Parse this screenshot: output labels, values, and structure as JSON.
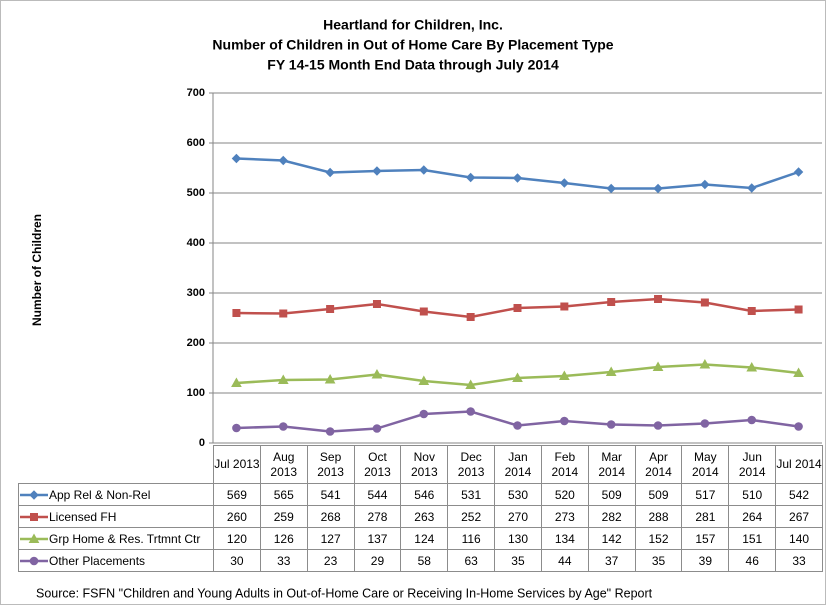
{
  "chart_data": {
    "type": "line",
    "title": [
      "Heartland for Children, Inc.",
      "Number of Children in Out of Home Care By Placement Type",
      "FY 14-15 Month End Data through July 2014"
    ],
    "y_label": "Number of Children",
    "categories": [
      "Jul 2013",
      "Aug 2013",
      "Sep 2013",
      "Oct 2013",
      "Nov 2013",
      "Dec 2013",
      "Jan 2014",
      "Feb 2014",
      "Mar 2014",
      "Apr 2014",
      "May 2014",
      "Jun 2014",
      "Jul 2014"
    ],
    "series": [
      {
        "name": "App Rel & Non-Rel",
        "color": "#4f81bd",
        "marker": "diamond",
        "values": [
          569,
          565,
          541,
          544,
          546,
          531,
          530,
          520,
          509,
          509,
          517,
          510,
          542
        ]
      },
      {
        "name": "Licensed FH",
        "color": "#c0504d",
        "marker": "square",
        "values": [
          260,
          259,
          268,
          278,
          263,
          252,
          270,
          273,
          282,
          288,
          281,
          264,
          267
        ]
      },
      {
        "name": "Grp Home & Res. Trtmnt Ctr",
        "color": "#9bbb59",
        "marker": "triangle",
        "values": [
          120,
          126,
          127,
          137,
          124,
          116,
          130,
          134,
          142,
          152,
          157,
          151,
          140
        ]
      },
      {
        "name": "Other Placements",
        "color": "#8064a2",
        "marker": "circle",
        "values": [
          30,
          33,
          23,
          29,
          58,
          63,
          35,
          44,
          37,
          35,
          39,
          46,
          33
        ]
      }
    ],
    "ylim": [
      0,
      700
    ],
    "yticks": [
      0,
      100,
      200,
      300,
      400,
      500,
      600,
      700
    ],
    "grid": true,
    "source": "Source:  FSFN \"Children and Young Adults in Out-of-Home Care or Receiving In-Home Services by Age\" Report"
  }
}
